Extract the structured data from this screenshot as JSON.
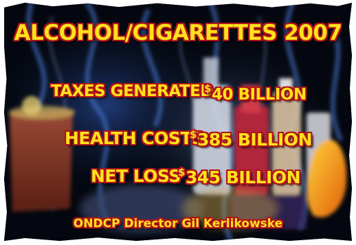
{
  "poster": {
    "title": "ALCOHOL/CIGARETTES 2007",
    "rows": [
      {
        "label": "TAXES GENERATED",
        "currency": "$",
        "amount": "40 BILLION"
      },
      {
        "label": "HEALTH COSTS",
        "currency": "$",
        "amount": "385 BILLION"
      },
      {
        "label": "NET LOSS",
        "currency": "$",
        "amount": "345 BILLION"
      }
    ],
    "credit": "ONDCP Director Gil Kerlikowske"
  },
  "colors": {
    "text_fill": "#ffe21c",
    "text_outline": "#b0121a",
    "background": "#04070f",
    "smoke": "#3a6fd0"
  }
}
